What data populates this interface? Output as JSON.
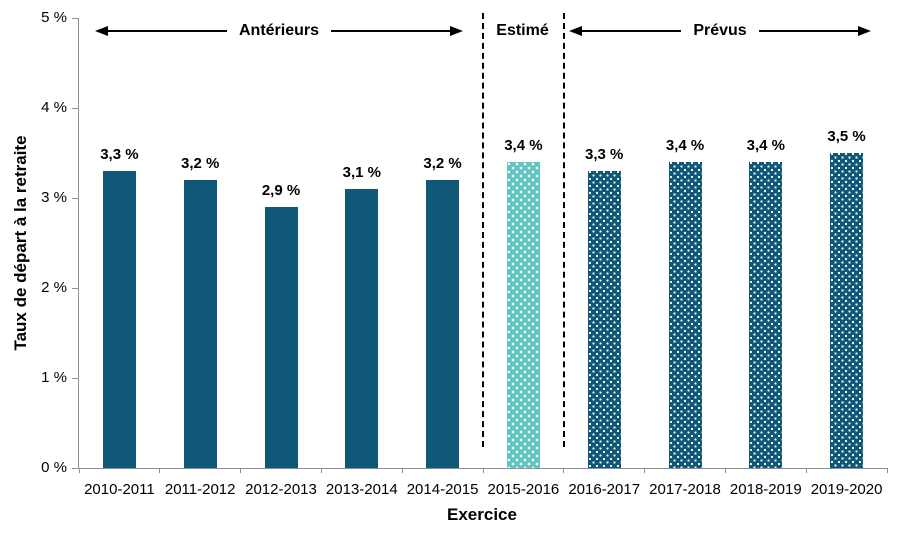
{
  "chart_data": {
    "type": "bar",
    "title": "",
    "xlabel": "Exercice",
    "ylabel": "Taux de départ à la retraite",
    "ylim": [
      0,
      5
    ],
    "yticks": [
      0,
      1,
      2,
      3,
      4,
      5
    ],
    "ytick_labels": [
      "0 %",
      "1 %",
      "2 %",
      "3 %",
      "4 %",
      "5 %"
    ],
    "categories": [
      "2010-2011",
      "2011-2012",
      "2012-2013",
      "2013-2014",
      "2014-2015",
      "2015-2016",
      "2016-2017",
      "2017-2018",
      "2018-2019",
      "2019-2020"
    ],
    "values": [
      3.3,
      3.2,
      2.9,
      3.1,
      3.2,
      3.4,
      3.3,
      3.4,
      3.4,
      3.5
    ],
    "data_labels": [
      "3,3 %",
      "3,2 %",
      "2,9 %",
      "3,1 %",
      "3,2 %",
      "3,4 %",
      "3,3 %",
      "3,4 %",
      "3,4 %",
      "3,5 %"
    ],
    "bar_styles": [
      "solid",
      "solid",
      "solid",
      "solid",
      "solid",
      "dotted-light",
      "dotted-dark",
      "dotted-dark",
      "dotted-dark",
      "dotted-dark"
    ],
    "groups": [
      {
        "label": "Antérieurs",
        "from": 0,
        "to": 4
      },
      {
        "label": "Estimé",
        "from": 5,
        "to": 5
      },
      {
        "label": "Prévus",
        "from": 6,
        "to": 9
      }
    ],
    "grid": false,
    "legend": "none",
    "colors": {
      "bar_solid": "#0F5878",
      "bar_estimated": "#60C5C0",
      "bar_forecast": "#0F5878",
      "pattern_dot": "#FFFFFF",
      "axis_line": "#8E8E8E",
      "text": "#000000"
    }
  }
}
